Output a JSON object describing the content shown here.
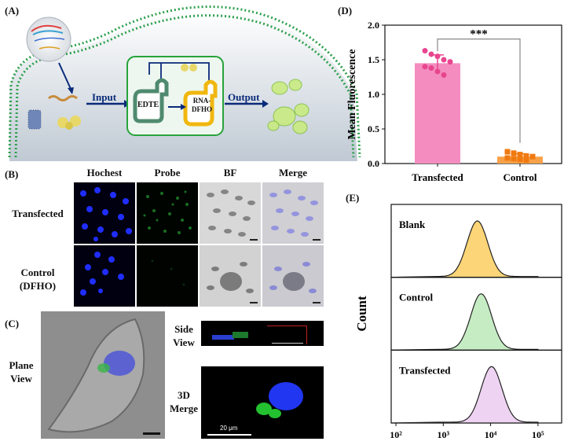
{
  "panelA": {
    "label": "(A)",
    "input_label": "Input",
    "output_label": "Output",
    "edte_label": "EDTE",
    "rna_dfho_label": "RNA-\nDFHO",
    "colors": {
      "membrane": "#2fa04e",
      "box_border": "#27a33b",
      "edte": "#4f8a6f",
      "rna": "#f0b70f",
      "arrow": "#0a2a7a"
    }
  },
  "panelB": {
    "label": "(B)",
    "columns": [
      "Hochest",
      "Probe",
      "BF",
      "Merge"
    ],
    "rows": [
      "Transfected",
      "Control\n(DFHO)"
    ]
  },
  "panelC": {
    "label": "(C)",
    "plane_view": "Plane\nView",
    "side_view": "Side\nView",
    "merge_3d": "3D\nMerge",
    "scale_bar": "20 μm"
  },
  "panelD": {
    "label": "(D)",
    "significance": "***",
    "chart_data": {
      "type": "bar",
      "categories": [
        "Transfected",
        "Control"
      ],
      "values": [
        1.45,
        0.1
      ],
      "errors": [
        0.12,
        0.04
      ],
      "points": [
        [
          1.63,
          1.58,
          1.55,
          1.5,
          1.47,
          1.4,
          1.38,
          1.33,
          1.28
        ],
        [
          0.17,
          0.15,
          0.13,
          0.11,
          0.1,
          0.08,
          0.07,
          0.06,
          0.05
        ]
      ],
      "colors": [
        "#f48cbf",
        "#f7a24a"
      ],
      "point_colors": [
        "#e8458f",
        "#f07a10"
      ],
      "ylabel": "Mean Fluorescence",
      "ylim": [
        0,
        2.0
      ],
      "yticks": [
        "0.0",
        "0.5",
        "1.0",
        "1.5",
        "2.0"
      ]
    }
  },
  "panelE": {
    "label": "(E)",
    "ylabel": "Count",
    "chart_data": {
      "type": "area",
      "panels": [
        {
          "name": "Blank",
          "peak_log10": 3.72,
          "color": "#fbd577"
        },
        {
          "name": "Control",
          "peak_log10": 3.8,
          "color": "#c6ecc4"
        },
        {
          "name": "Transfected",
          "peak_log10": 4.02,
          "color": "#eed3f2"
        }
      ],
      "xticks": [
        "10²",
        "10³",
        "10⁴",
        "10⁵"
      ],
      "xlim_log10": [
        1.9,
        5.5
      ]
    }
  }
}
